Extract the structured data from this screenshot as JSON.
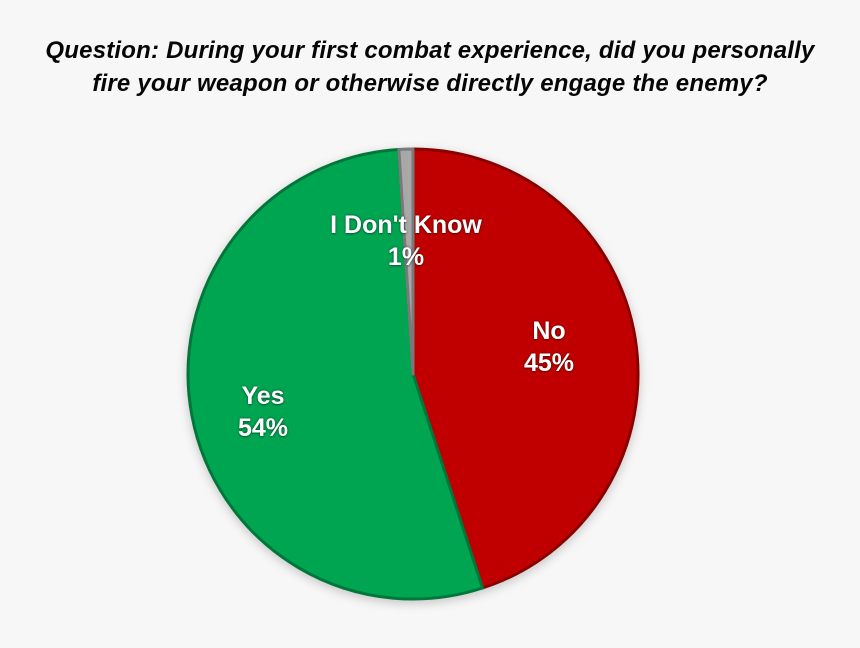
{
  "page": {
    "background": "#F7F7F7"
  },
  "title_lines": [
    "Question: During your first combat experience, did you personally",
    "fire your weapon or otherwise directly engage the enemy?"
  ],
  "chart_data": {
    "type": "pie",
    "title": "Question: During your first combat experience, did you personally fire your weapon or otherwise directly engage the enemy?",
    "categories": [
      "No",
      "Yes",
      "I Don't Know"
    ],
    "values": [
      45,
      54,
      1
    ],
    "value_unit": "%",
    "direction": "clockwise",
    "start_angle_deg": 0,
    "legend": "none",
    "colors": {
      "No": "#C00000",
      "Yes": "#00A551",
      "I Don't Know": "#A8A8A8"
    },
    "label_text_color": "#FFFFFF",
    "labels": [
      {
        "name": "No",
        "pct": "45%"
      },
      {
        "name": "Yes",
        "pct": "54%"
      },
      {
        "name": "I Don't Know",
        "pct": "1%"
      }
    ]
  }
}
